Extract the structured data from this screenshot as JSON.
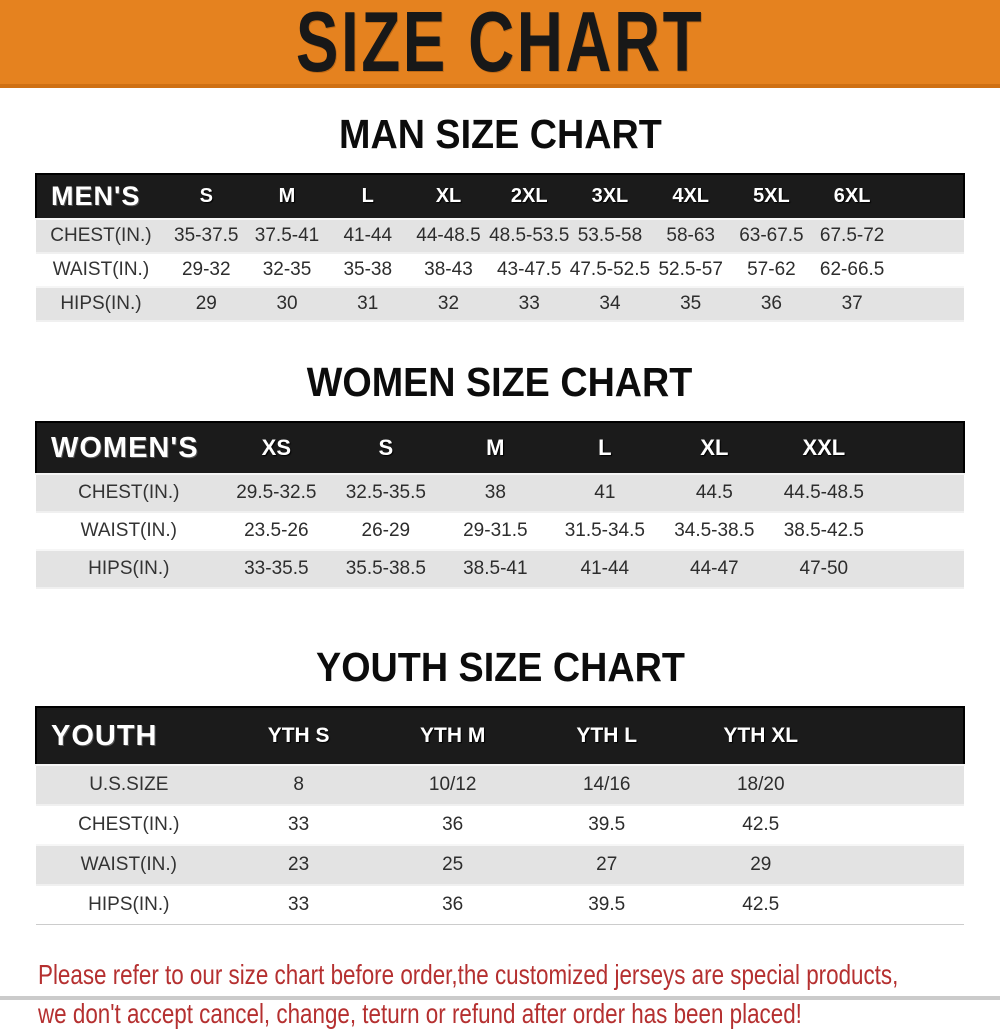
{
  "banner": {
    "title": "SIZE CHART"
  },
  "sections": [
    {
      "heading": "MAN SIZE CHART",
      "label": "MEN'S",
      "columns": [
        "S",
        "M",
        "L",
        "XL",
        "2XL",
        "3XL",
        "4XL",
        "5XL",
        "6XL"
      ],
      "rows": [
        {
          "label": "CHEST(IN.)",
          "values": [
            "35-37.5",
            "37.5-41",
            "41-44",
            "44-48.5",
            "48.5-53.5",
            "53.5-58",
            "58-63",
            "63-67.5",
            "67.5-72"
          ]
        },
        {
          "label": "WAIST(IN.)",
          "values": [
            "29-32",
            "32-35",
            "35-38",
            "38-43",
            "43-47.5",
            "47.5-52.5",
            "52.5-57",
            "57-62",
            "62-66.5"
          ]
        },
        {
          "label": "HIPS(IN.)",
          "values": [
            "29",
            "30",
            "31",
            "32",
            "33",
            "34",
            "35",
            "36",
            "37"
          ]
        }
      ]
    },
    {
      "heading": "WOMEN SIZE CHART",
      "label": "WOMEN'S",
      "columns": [
        "XS",
        "S",
        "M",
        "L",
        "XL",
        "XXL"
      ],
      "rows": [
        {
          "label": "CHEST(IN.)",
          "values": [
            "29.5-32.5",
            "32.5-35.5",
            "38",
            "41",
            "44.5",
            "44.5-48.5"
          ]
        },
        {
          "label": "WAIST(IN.)",
          "values": [
            "23.5-26",
            "26-29",
            "29-31.5",
            "31.5-34.5",
            "34.5-38.5",
            "38.5-42.5"
          ]
        },
        {
          "label": "HIPS(IN.)",
          "values": [
            "33-35.5",
            "35.5-38.5",
            "38.5-41",
            "41-44",
            "44-47",
            "47-50"
          ]
        }
      ]
    },
    {
      "heading": "YOUTH SIZE CHART",
      "label": "YOUTH",
      "columns": [
        "YTH S",
        "YTH M",
        "YTH L",
        "YTH XL"
      ],
      "rows": [
        {
          "label": "U.S.SIZE",
          "values": [
            "8",
            "10/12",
            "14/16",
            "18/20"
          ]
        },
        {
          "label": "CHEST(IN.)",
          "values": [
            "33",
            "36",
            "39.5",
            "42.5"
          ]
        },
        {
          "label": "WAIST(IN.)",
          "values": [
            "23",
            "25",
            "27",
            "29"
          ]
        },
        {
          "label": "HIPS(IN.)",
          "values": [
            "33",
            "36",
            "39.5",
            "42.5"
          ]
        }
      ]
    }
  ],
  "footer": {
    "line1": "Please refer to our size chart before order,the customized jerseys are special products,",
    "line2": "we don't accept cancel, change, teturn or refund after order has been placed!"
  },
  "colors": {
    "banner_bg": "#E5821F",
    "banner_text": "#181818",
    "table_header_bg": "#1b1b1b",
    "table_header_text": "#ffffff",
    "row_gray": "#e3e3e3",
    "row_white": "#ffffff",
    "notice_text": "#b53030"
  }
}
